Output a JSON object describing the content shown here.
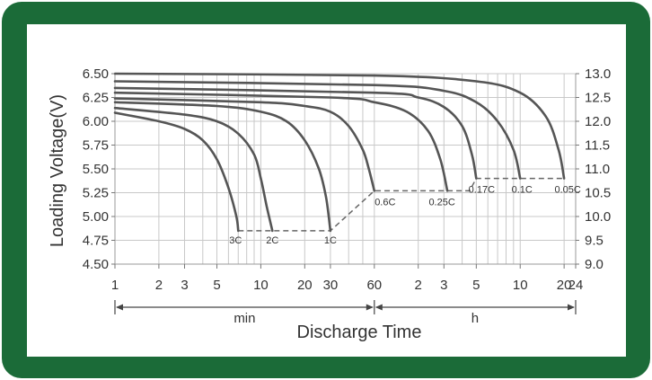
{
  "chart_data": {
    "type": "line",
    "title": "",
    "xlabel": "Discharge Time",
    "ylabel": "Loading Voltage(V)",
    "x_scale": "log",
    "x_units": [
      {
        "label": "min",
        "from_min": 1,
        "to_min": 60
      },
      {
        "label": "h",
        "from_min": 60,
        "to_min": 1440
      }
    ],
    "x_ticks": [
      {
        "label": "1",
        "min": 1
      },
      {
        "label": "2",
        "min": 2
      },
      {
        "label": "3",
        "min": 3
      },
      {
        "label": "5",
        "min": 5
      },
      {
        "label": "10",
        "min": 10
      },
      {
        "label": "20",
        "min": 20
      },
      {
        "label": "30",
        "min": 30
      },
      {
        "label": "60",
        "min": 60
      },
      {
        "label": "2",
        "min": 120
      },
      {
        "label": "3",
        "min": 180
      },
      {
        "label": "5",
        "min": 300
      },
      {
        "label": "10",
        "min": 600
      },
      {
        "label": "20",
        "min": 1200
      },
      {
        "label": "24",
        "min": 1440
      }
    ],
    "y_left": {
      "ticks": [
        "6.50",
        "6.25",
        "6.00",
        "5.75",
        "5.50",
        "5.25",
        "5.00",
        "4.75",
        "4.50"
      ],
      "ylim": [
        4.5,
        6.5
      ]
    },
    "y_right": {
      "ticks": [
        "13.0",
        "12.5",
        "12.0",
        "11.5",
        "11.0",
        "10.5",
        "10.0",
        "9.5",
        "9.0"
      ],
      "ylim": [
        9.0,
        13.0
      ]
    },
    "grid": true,
    "end_voltage_line": [
      {
        "min": 7,
        "v": 4.85
      },
      {
        "min": 30,
        "v": 4.85
      },
      {
        "min": 60,
        "v": 5.27
      },
      {
        "min": 270,
        "v": 5.27
      },
      {
        "min": 300,
        "v": 5.4
      },
      {
        "min": 1200,
        "v": 5.4
      }
    ],
    "series": [
      {
        "name": "3C",
        "points": [
          [
            1,
            6.09
          ],
          [
            2,
            6.0
          ],
          [
            3,
            5.92
          ],
          [
            4,
            5.8
          ],
          [
            5,
            5.6
          ],
          [
            6,
            5.3
          ],
          [
            6.8,
            5.0
          ],
          [
            7,
            4.85
          ]
        ]
      },
      {
        "name": "2C",
        "points": [
          [
            1,
            6.14
          ],
          [
            3,
            6.07
          ],
          [
            5,
            6.0
          ],
          [
            7,
            5.87
          ],
          [
            9,
            5.65
          ],
          [
            10,
            5.4
          ],
          [
            11,
            5.1
          ],
          [
            12,
            4.85
          ]
        ]
      },
      {
        "name": "1C",
        "points": [
          [
            1,
            6.2
          ],
          [
            5,
            6.16
          ],
          [
            10,
            6.1
          ],
          [
            15,
            6.0
          ],
          [
            20,
            5.8
          ],
          [
            25,
            5.5
          ],
          [
            28,
            5.2
          ],
          [
            30,
            4.85
          ]
        ]
      },
      {
        "name": "0.6C",
        "points": [
          [
            1,
            6.24
          ],
          [
            10,
            6.2
          ],
          [
            20,
            6.16
          ],
          [
            30,
            6.1
          ],
          [
            40,
            5.95
          ],
          [
            50,
            5.7
          ],
          [
            55,
            5.5
          ],
          [
            60,
            5.27
          ]
        ]
      },
      {
        "name": "0.25C",
        "points": [
          [
            1,
            6.3
          ],
          [
            30,
            6.25
          ],
          [
            60,
            6.2
          ],
          [
            100,
            6.1
          ],
          [
            140,
            5.9
          ],
          [
            170,
            5.6
          ],
          [
            190,
            5.27
          ]
        ]
      },
      {
        "name": "0.17C",
        "points": [
          [
            1,
            6.35
          ],
          [
            60,
            6.3
          ],
          [
            120,
            6.25
          ],
          [
            180,
            6.15
          ],
          [
            240,
            5.95
          ],
          [
            280,
            5.65
          ],
          [
            300,
            5.4
          ]
        ]
      },
      {
        "name": "0.1C",
        "points": [
          [
            1,
            6.42
          ],
          [
            60,
            6.38
          ],
          [
            180,
            6.32
          ],
          [
            300,
            6.2
          ],
          [
            420,
            6.0
          ],
          [
            540,
            5.7
          ],
          [
            600,
            5.4
          ]
        ]
      },
      {
        "name": "0.05C",
        "points": [
          [
            1,
            6.5
          ],
          [
            60,
            6.48
          ],
          [
            300,
            6.42
          ],
          [
            600,
            6.3
          ],
          [
            900,
            6.05
          ],
          [
            1100,
            5.7
          ],
          [
            1200,
            5.4
          ]
        ]
      }
    ],
    "curve_labels": [
      {
        "series": "3C",
        "text": "3C"
      },
      {
        "series": "2C",
        "text": "2C"
      },
      {
        "series": "1C",
        "text": "1C"
      },
      {
        "series": "0.6C",
        "text": "0.6C"
      },
      {
        "series": "0.25C",
        "text": "0.25C"
      },
      {
        "series": "0.17C",
        "text": "0.17C"
      },
      {
        "series": "0.1C",
        "text": "0.1C"
      },
      {
        "series": "0.05C",
        "text": "0.05C"
      }
    ]
  },
  "colors": {
    "frame": "#1b6b38",
    "curve": "#555555",
    "grid": "#c8c8c8",
    "text": "#333333"
  }
}
